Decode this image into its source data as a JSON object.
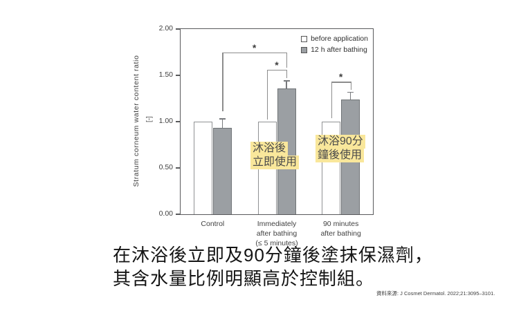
{
  "chart_data": {
    "type": "bar",
    "ylabel": "Stratum corneum water content ratio",
    "ylabel_unit": "[-]",
    "ylim": [
      0,
      2.0
    ],
    "grid": false,
    "legend_position": "top-right",
    "yticks": [
      {
        "value": 0.0,
        "label": "0.00"
      },
      {
        "value": 0.5,
        "label": "0.50"
      },
      {
        "value": 1.0,
        "label": "1.00"
      },
      {
        "value": 1.5,
        "label": "1.50"
      },
      {
        "value": 2.0,
        "label": "2.00"
      }
    ],
    "categories": [
      {
        "key": "control",
        "lines": [
          "Control"
        ]
      },
      {
        "key": "immediately-after-bathing",
        "lines": [
          "Immediately",
          "after bathing",
          "(≤ 5 minutes)"
        ]
      },
      {
        "key": "90-minutes-after-bathing",
        "lines": [
          "90 minutes",
          "after bathing"
        ]
      }
    ],
    "series": [
      {
        "key": "before",
        "name": "before application",
        "fill": "#ffffff",
        "border": "#8f9193",
        "values": [
          1.0,
          1.0,
          1.0
        ],
        "errors": [
          0,
          0,
          0
        ]
      },
      {
        "key": "after12h",
        "name": "12 h after bathing",
        "fill": "#9b9fa3",
        "border": "#6f7376",
        "values": [
          0.93,
          1.36,
          1.24
        ],
        "errors": [
          0.1,
          0.08,
          0.08
        ]
      }
    ],
    "significance": [
      {
        "label": "*",
        "from": {
          "group": 0,
          "series": 1
        },
        "to": {
          "group": 1,
          "series": 1
        },
        "bar_y": 1.75,
        "from_drop": 1.11,
        "to_drop": 1.58
      },
      {
        "label": "*",
        "from": {
          "group": 1,
          "series": 0
        },
        "to": {
          "group": 1,
          "series": 1
        },
        "bar_y": 1.56,
        "from_drop": 1.02,
        "to_drop": 1.47
      },
      {
        "label": "*",
        "from": {
          "group": 2,
          "series": 0
        },
        "to": {
          "group": 2,
          "series": 1
        },
        "bar_y": 1.43,
        "from_drop": 1.04,
        "to_drop": 1.34
      }
    ],
    "annotations": [
      {
        "key": "apply-immediately",
        "lines": [
          "沐浴後",
          "立即使用"
        ],
        "x": 362,
        "y": 205
      },
      {
        "key": "apply-90min",
        "lines": [
          "沐浴90分",
          "鐘後使用"
        ],
        "x": 456,
        "y": 195
      }
    ],
    "annotation_highlight": "#f9e79b"
  },
  "caption": {
    "line1": "在沐浴後立即及90分鐘後塗抹保濕劑，",
    "line2": "其含水量比例明顯高於控制組。"
  },
  "source_note": "資料來源: J Cosmet Dermatol. 2022;21:3095–3101.",
  "colors": {
    "background": "#ffffff",
    "axis": "#58595b",
    "tick_text": "#3f3f3f",
    "bracket": "#8c8c8c",
    "error_bar": "#77797c",
    "annotation_text": "#4a4a4a",
    "caption_text": "#141414",
    "source_text": "#3d3d3d"
  }
}
